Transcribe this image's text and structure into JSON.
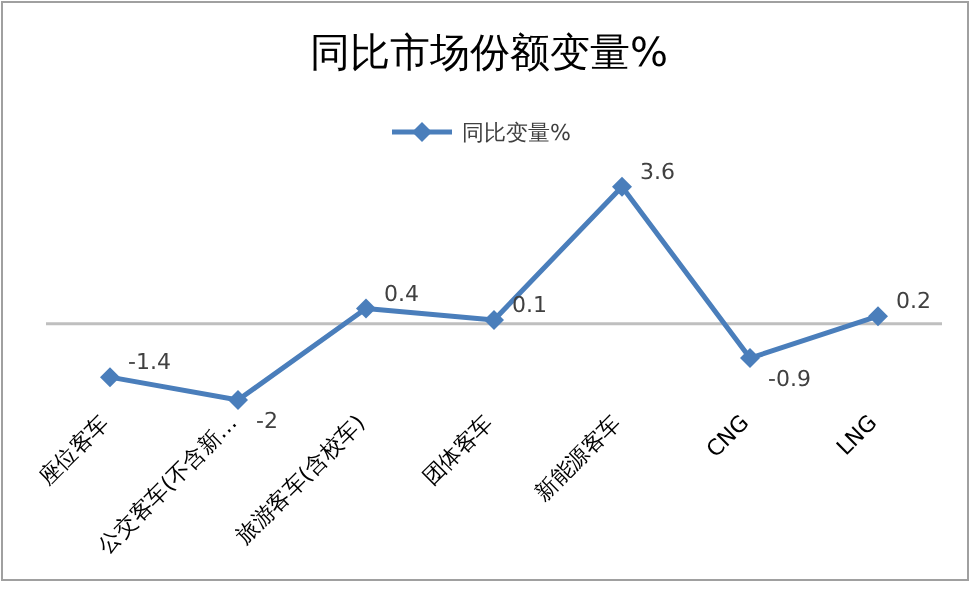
{
  "chart_data": {
    "type": "line",
    "title": "同比市场份额变量%",
    "categories": [
      "座位客车",
      "公交客车(不含新…",
      "旅游客车(含校车)",
      "团体客车",
      "新能源客车",
      "CNG",
      "LNG"
    ],
    "series": [
      {
        "name": "同比变量%",
        "color": "#4a7ebb",
        "values": [
          -1.4,
          -2,
          0.4,
          0.1,
          3.6,
          -0.9,
          0.2
        ]
      }
    ],
    "data_labels": true,
    "legend": "top",
    "marker": "diamond",
    "line_style": "solid"
  }
}
